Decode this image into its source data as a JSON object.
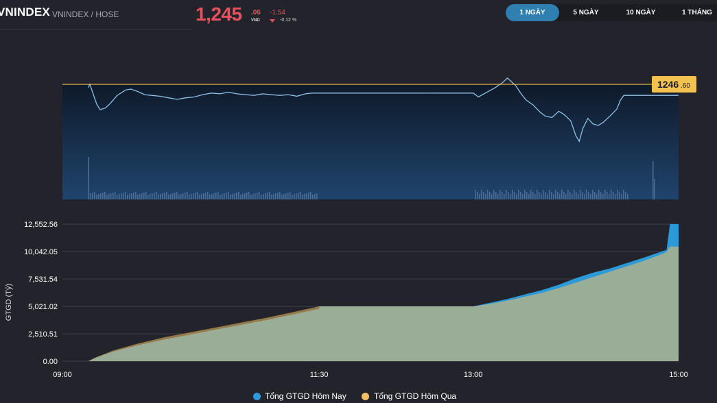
{
  "header": {
    "ticker": "VNINDEX",
    "subtitle": "VNINDEX / HOSE",
    "price_main": "1,245",
    "price_dec": ".06",
    "price_unit": "VND",
    "change": "-1.54",
    "change_pct": "-0.12 %",
    "change_color": "#e8505e"
  },
  "tabs": [
    {
      "label": "1 NGÀY",
      "active": true
    },
    {
      "label": "5 NGÀY",
      "active": false
    },
    {
      "label": "10 NGÀY",
      "active": false
    },
    {
      "label": "1 THÁNG",
      "active": false
    }
  ],
  "chart_data": [
    {
      "type": "line",
      "series": [
        {
          "name": "",
          "color": "#8fc2e6"
        }
      ],
      "reference_line": {
        "value": 1246.6,
        "label_main": "1246",
        "label_dec": ".60",
        "color": "#f2c14e"
      },
      "x_range": [
        "09:00",
        "15:00"
      ],
      "y_range": [
        1236.9,
        1248.6
      ],
      "points": [
        [
          "09:00",
          null
        ],
        [
          "09:15",
          1246.2
        ],
        [
          "09:16",
          1246.6
        ],
        [
          "09:17",
          1246.0
        ],
        [
          "09:20",
          1244.1
        ],
        [
          "09:22",
          1243.4
        ],
        [
          "09:25",
          1243.6
        ],
        [
          "09:28",
          1244.2
        ],
        [
          "09:32",
          1245.2
        ],
        [
          "09:37",
          1245.9
        ],
        [
          "09:40",
          1246.0
        ],
        [
          "09:44",
          1245.7
        ],
        [
          "09:48",
          1245.3
        ],
        [
          "09:52",
          1245.2
        ],
        [
          "09:57",
          1245.1
        ],
        [
          "10:02",
          1244.9
        ],
        [
          "10:07",
          1244.7
        ],
        [
          "10:12",
          1244.9
        ],
        [
          "10:17",
          1245.0
        ],
        [
          "10:22",
          1245.3
        ],
        [
          "10:27",
          1245.5
        ],
        [
          "10:32",
          1245.4
        ],
        [
          "10:37",
          1245.6
        ],
        [
          "10:42",
          1245.4
        ],
        [
          "10:47",
          1245.3
        ],
        [
          "10:52",
          1245.2
        ],
        [
          "10:57",
          1245.4
        ],
        [
          "11:02",
          1245.3
        ],
        [
          "11:07",
          1245.2
        ],
        [
          "11:12",
          1245.3
        ],
        [
          "11:17",
          1245.1
        ],
        [
          "11:22",
          1245.4
        ],
        [
          "11:26",
          1245.5
        ],
        [
          "11:30",
          1245.5
        ],
        [
          "13:00",
          1245.5
        ],
        [
          "13:03",
          1245.0
        ],
        [
          "13:08",
          1245.6
        ],
        [
          "13:13",
          1246.2
        ],
        [
          "13:17",
          1246.8
        ],
        [
          "13:20",
          1247.4
        ],
        [
          "13:22",
          1247.0
        ],
        [
          "13:25",
          1246.4
        ],
        [
          "13:28",
          1245.4
        ],
        [
          "13:31",
          1244.6
        ],
        [
          "13:35",
          1244.0
        ],
        [
          "13:39",
          1243.1
        ],
        [
          "13:42",
          1242.6
        ],
        [
          "13:46",
          1242.4
        ],
        [
          "13:50",
          1243.2
        ],
        [
          "13:53",
          1242.8
        ],
        [
          "13:57",
          1242.0
        ],
        [
          "14:00",
          1240.1
        ],
        [
          "14:02",
          1239.4
        ],
        [
          "14:04",
          1241.0
        ],
        [
          "14:07",
          1242.3
        ],
        [
          "14:10",
          1241.6
        ],
        [
          "14:13",
          1241.4
        ],
        [
          "14:16",
          1241.8
        ],
        [
          "14:20",
          1242.6
        ],
        [
          "14:24",
          1243.5
        ],
        [
          "14:26",
          1244.6
        ],
        [
          "14:28",
          1245.2
        ],
        [
          "14:35",
          1245.2
        ],
        [
          "14:45",
          1245.2
        ],
        [
          "15:00",
          1245.2
        ]
      ],
      "volume_bars_note": ""
    },
    {
      "type": "area",
      "ylabel": "GTGD (Tỷ)",
      "x_ticks": [
        "09:00",
        "11:30",
        "13:00",
        "15:00"
      ],
      "y_ticks": [
        "0.00",
        "2,510.51",
        "5,021.02",
        "7,531.54",
        "10,042.05",
        "12,552.56"
      ],
      "ylim": [
        0,
        12552.56
      ],
      "series": [
        {
          "name": "Tổng GTGD Hôm Nay",
          "color": "#2c9ad8",
          "points": [
            [
              "09:00",
              0
            ],
            [
              "09:15",
              0
            ],
            [
              "09:20",
              350
            ],
            [
              "09:30",
              900
            ],
            [
              "09:45",
              1500
            ],
            [
              "10:00",
              2000
            ],
            [
              "10:15",
              2450
            ],
            [
              "10:30",
              2900
            ],
            [
              "10:45",
              3350
            ],
            [
              "11:00",
              3800
            ],
            [
              "11:15",
              4300
            ],
            [
              "11:30",
              4800
            ],
            [
              "11:30",
              5021
            ],
            [
              "13:00",
              5021
            ],
            [
              "13:10",
              5350
            ],
            [
              "13:20",
              5700
            ],
            [
              "13:30",
              6100
            ],
            [
              "13:40",
              6500
            ],
            [
              "13:50",
              7000
            ],
            [
              "14:00",
              7600
            ],
            [
              "14:10",
              8100
            ],
            [
              "14:20",
              8500
            ],
            [
              "14:30",
              9000
            ],
            [
              "14:40",
              9500
            ],
            [
              "14:50",
              10042
            ],
            [
              "14:53",
              10200
            ],
            [
              "14:55",
              12552
            ],
            [
              "15:00",
              12552
            ]
          ]
        },
        {
          "name": "Tổng GTGD Hôm Qua",
          "color": "#f5c063",
          "points": [
            [
              "09:00",
              0
            ],
            [
              "09:15",
              0
            ],
            [
              "09:20",
              380
            ],
            [
              "09:30",
              1000
            ],
            [
              "09:45",
              1650
            ],
            [
              "10:00",
              2200
            ],
            [
              "10:15",
              2650
            ],
            [
              "10:30",
              3100
            ],
            [
              "10:45",
              3550
            ],
            [
              "11:00",
              4000
            ],
            [
              "11:15",
              4500
            ],
            [
              "11:30",
              5021
            ],
            [
              "13:00",
              5021
            ],
            [
              "13:10",
              5250
            ],
            [
              "13:20",
              5550
            ],
            [
              "13:30",
              5900
            ],
            [
              "13:40",
              6250
            ],
            [
              "13:50",
              6700
            ],
            [
              "14:00",
              7200
            ],
            [
              "14:10",
              7700
            ],
            [
              "14:20",
              8200
            ],
            [
              "14:30",
              8700
            ],
            [
              "14:40",
              9200
            ],
            [
              "14:50",
              9800
            ],
            [
              "14:53",
              10000
            ],
            [
              "14:55",
              10500
            ],
            [
              "15:00",
              10500
            ]
          ]
        }
      ],
      "legend_position": "bottom"
    }
  ]
}
